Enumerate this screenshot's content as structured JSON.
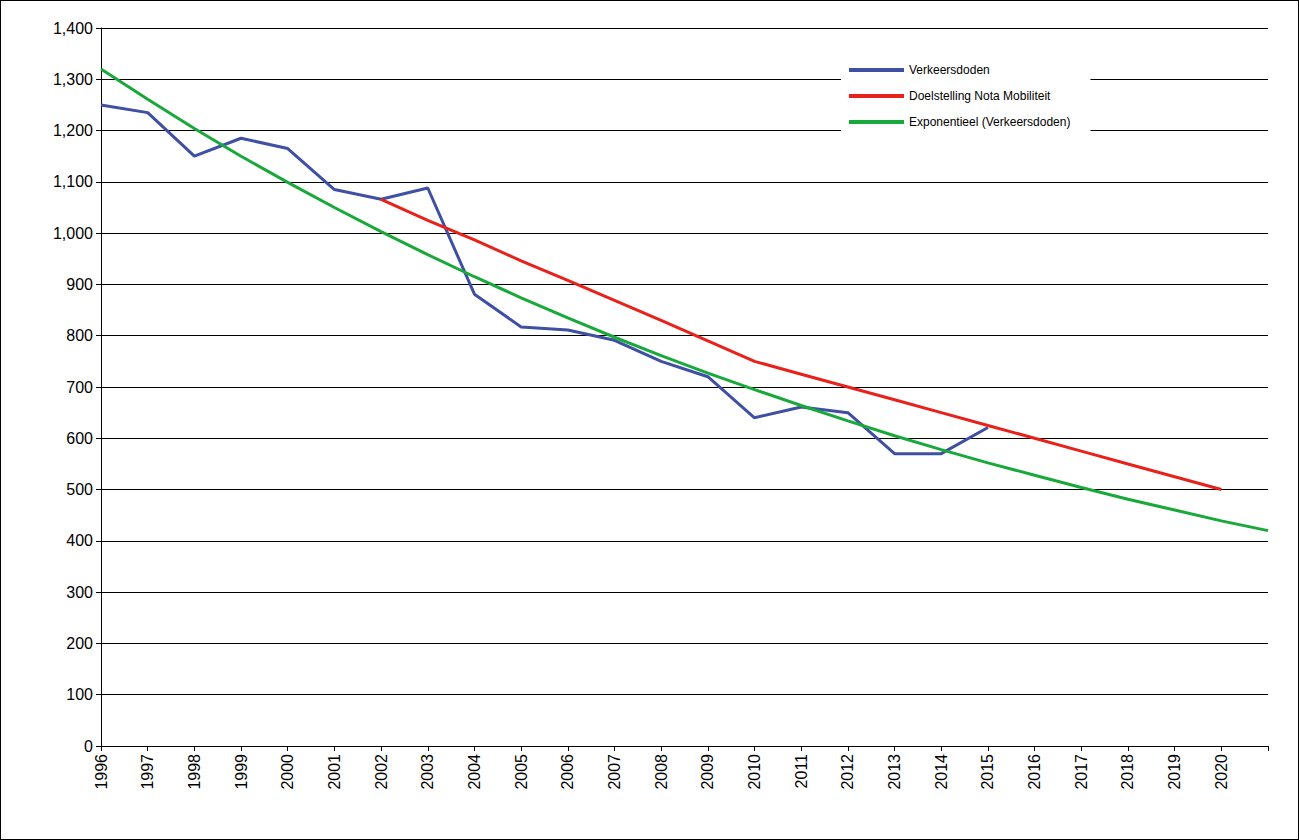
{
  "chart_data": {
    "type": "line",
    "categories": [
      "1996",
      "1997",
      "1998",
      "1999",
      "2000",
      "2001",
      "2002",
      "2003",
      "2004",
      "2005",
      "2006",
      "2007",
      "2008",
      "2009",
      "2010",
      "2011",
      "2012",
      "2013",
      "2014",
      "2015",
      "2016",
      "2017",
      "2018",
      "2019",
      "2020",
      null
    ],
    "series": [
      {
        "name": "Verkeersdoden",
        "color": "#3f4fa3",
        "values": [
          1250,
          1235,
          1150,
          1185,
          1165,
          1085,
          1066,
          1088,
          881,
          817,
          811,
          791,
          750,
          720,
          640,
          661,
          650,
          570,
          570,
          621,
          null,
          null,
          null,
          null,
          null,
          null
        ]
      },
      {
        "name": "Doelstelling Nota Mobiliteit",
        "color": "#e8221b",
        "values": [
          null,
          null,
          null,
          null,
          null,
          null,
          1066,
          1025,
          987,
          946,
          908,
          869,
          830,
          790,
          750,
          725,
          700,
          675,
          650,
          625,
          600,
          575,
          550,
          525,
          500,
          null
        ]
      },
      {
        "name": "Exponentieel (Verkeersdoden)",
        "color": "#19a83a",
        "values": [
          1320,
          1261,
          1204,
          1150,
          1099,
          1050,
          1003,
          958,
          915,
          874,
          835,
          797,
          761,
          727,
          695,
          664,
          634,
          605,
          578,
          552,
          528,
          504,
          481,
          460,
          439,
          420
        ]
      }
    ],
    "ylim": [
      0,
      1400
    ],
    "yticks": [
      0,
      100,
      200,
      300,
      400,
      500,
      600,
      700,
      800,
      900,
      1000,
      1100,
      1200,
      1300,
      1400
    ],
    "grid": true,
    "legend": "top-right"
  }
}
